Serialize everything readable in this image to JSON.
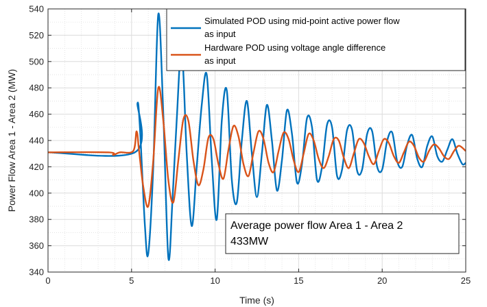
{
  "chart_data": {
    "type": "line",
    "title": "",
    "xlabel": "Time (s)",
    "ylabel": "Power Flow Area 1 - Area 2 (MW)",
    "xlim": [
      0,
      25
    ],
    "ylim": [
      340,
      540
    ],
    "xticks": [
      0,
      5,
      10,
      15,
      20,
      25
    ],
    "yticks": [
      340,
      360,
      380,
      400,
      420,
      440,
      460,
      480,
      500,
      520,
      540
    ],
    "grid": true,
    "minor_grid": true,
    "legend_position": "top-right",
    "annotation": {
      "line1": "Average power flow Area 1 - Area 2",
      "line2": "433MW"
    },
    "series": [
      {
        "name": "Simulated POD using mid-point active power flow as input",
        "legend_lines": [
          "Simulated POD using mid-point active power flow",
          "as input"
        ],
        "color": "#0072BD",
        "x": [
          0,
          5.2,
          5.35,
          5.5,
          5.8,
          6.0,
          6.3,
          6.6,
          6.9,
          7.2,
          7.45,
          7.7,
          8.0,
          8.3,
          8.6,
          8.9,
          9.2,
          9.5,
          9.8,
          10.1,
          10.4,
          10.7,
          11.0,
          11.3,
          11.6,
          11.9,
          12.2,
          12.5,
          12.8,
          13.1,
          13.4,
          13.7,
          14.0,
          14.3,
          14.6,
          14.9,
          15.2,
          15.5,
          15.8,
          16.1,
          16.4,
          16.7,
          17.0,
          17.3,
          17.6,
          17.9,
          18.2,
          18.5,
          18.8,
          19.1,
          19.4,
          19.7,
          20.0,
          20.3,
          20.6,
          20.9,
          21.2,
          21.5,
          21.8,
          22.1,
          22.4,
          22.7,
          23.0,
          23.3,
          23.6,
          23.9,
          24.2,
          24.5,
          24.8,
          25.0
        ],
        "values": [
          431,
          431,
          468,
          450,
          375,
          354,
          420,
          536,
          460,
          351,
          395,
          455,
          510,
          430,
          375,
          420,
          467,
          490,
          425,
          380,
          455,
          478,
          410,
          393,
          440,
          470,
          430,
          397,
          430,
          467,
          440,
          402,
          425,
          463,
          445,
          408,
          422,
          457,
          450,
          410,
          420,
          452,
          450,
          413,
          418,
          448,
          448,
          417,
          418,
          445,
          447,
          420,
          418,
          440,
          446,
          424,
          420,
          437,
          444,
          426,
          420,
          436,
          443,
          428,
          424,
          433,
          441,
          430,
          422,
          423
        ]
      },
      {
        "name": "Hardware POD using voltage angle difference as input",
        "legend_lines": [
          "Hardware POD using voltage angle difference",
          "as input"
        ],
        "color": "#D95319",
        "x": [
          0,
          3.6,
          3.9,
          4.3,
          5.1,
          5.3,
          5.45,
          5.7,
          6.0,
          6.3,
          6.6,
          6.9,
          7.2,
          7.5,
          7.8,
          8.1,
          8.4,
          8.7,
          9.0,
          9.3,
          9.6,
          9.9,
          10.2,
          10.5,
          10.8,
          11.1,
          11.4,
          11.7,
          12.0,
          12.3,
          12.6,
          12.9,
          13.2,
          13.5,
          13.8,
          14.1,
          14.4,
          14.7,
          15.0,
          15.3,
          15.6,
          15.9,
          16.2,
          16.5,
          16.8,
          17.1,
          17.4,
          17.7,
          18.0,
          18.3,
          18.6,
          18.9,
          19.2,
          19.5,
          19.8,
          20.1,
          20.4,
          20.7,
          21.0,
          21.3,
          21.6,
          21.9,
          22.2,
          22.5,
          22.8,
          23.1,
          23.4,
          23.7,
          24.0,
          24.3,
          24.6,
          25.0
        ],
        "values": [
          431,
          431,
          429,
          431,
          432,
          447,
          432,
          405,
          390,
          425,
          480,
          455,
          410,
          393,
          425,
          456,
          455,
          425,
          406,
          418,
          442,
          441,
          422,
          411,
          433,
          451,
          443,
          422,
          413,
          431,
          447,
          441,
          423,
          416,
          432,
          446,
          441,
          425,
          416,
          430,
          445,
          440,
          426,
          419,
          428,
          441,
          440,
          427,
          419,
          430,
          441,
          438,
          428,
          422,
          432,
          441,
          438,
          428,
          423,
          431,
          439,
          436,
          427,
          424,
          432,
          437,
          434,
          428,
          426,
          432,
          436,
          432
        ]
      }
    ]
  }
}
